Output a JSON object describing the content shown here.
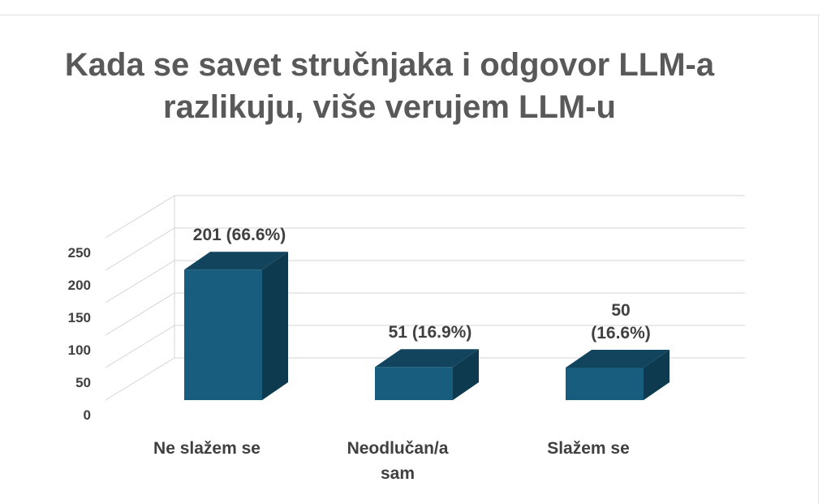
{
  "chart_data": {
    "type": "bar",
    "title": "Kada se savet stručnjaka i odgovor LLM-a razlikuju, više verujem LLM-u",
    "categories": [
      "Ne slažem se",
      "Neodlučan/a sam",
      " Slažem se"
    ],
    "category_lines": [
      [
        "Ne slažem se"
      ],
      [
        "Neodlučan/a",
        "sam"
      ],
      [
        "Slažem se"
      ]
    ],
    "values": [
      201,
      51,
      50
    ],
    "data_labels": [
      [
        "201 (66.6%)"
      ],
      [
        "51 (16.9%)"
      ],
      [
        "50",
        "(16.6%)"
      ]
    ],
    "yticks": [
      "0",
      "50",
      "100",
      "150",
      "200",
      "250"
    ],
    "ylim": [
      0,
      250
    ],
    "grid": true,
    "three_d": true,
    "colors": {
      "bar_front": "#185d7d",
      "bar_top": "#12445e",
      "bar_side": "#0e3a50",
      "grid": "#d4d4d4",
      "text": "#404040",
      "title": "#595959"
    }
  }
}
